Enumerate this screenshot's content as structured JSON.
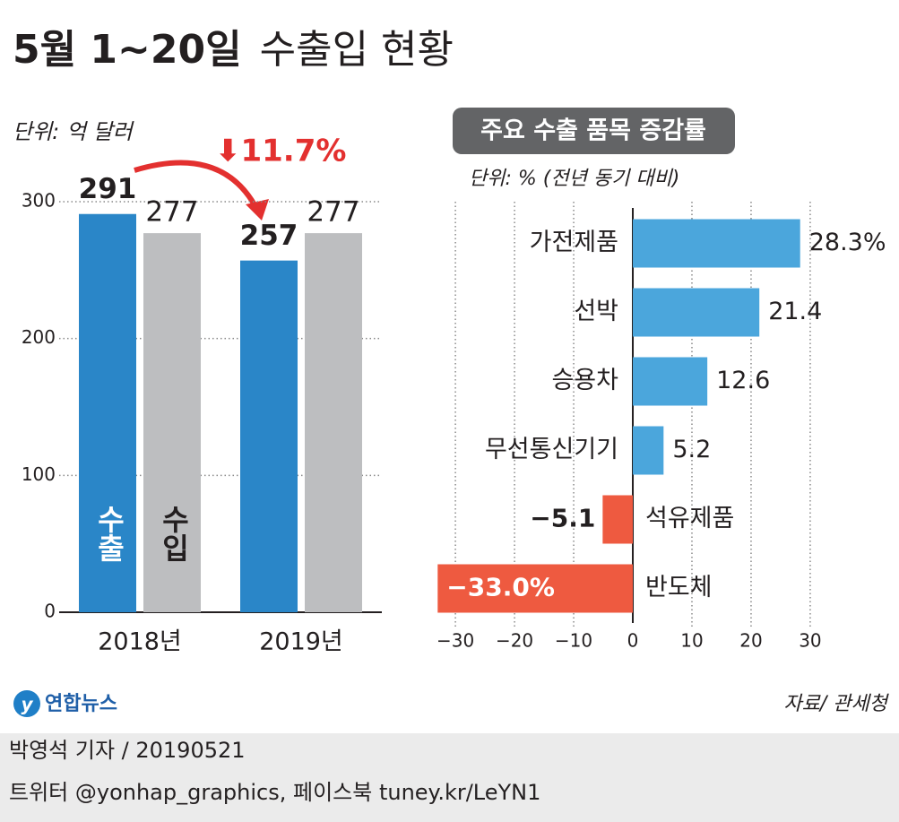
{
  "title_main": "5월 1~20일",
  "title_rest": "수출입 현황",
  "chart_data": [
    {
      "type": "bar",
      "unit": "단위: 억 달러",
      "annotation": "⬇11.7%",
      "annotation_color": "#e3302f",
      "categories": [
        "2018년",
        "2019년"
      ],
      "series": [
        {
          "name": "수출",
          "color": "#2a86c8",
          "values": [
            291,
            257
          ]
        },
        {
          "name": "수입",
          "color": "#bdbec0",
          "values": [
            277,
            277
          ]
        }
      ],
      "ylim": [
        0,
        300
      ],
      "yticks": [
        0,
        100,
        200,
        300
      ],
      "grid": true
    },
    {
      "type": "barh",
      "title": "주요 수출 품목 증감률",
      "unit": "단위: % (전년 동기 대비)",
      "categories": [
        "가전제품",
        "선박",
        "승용차",
        "무선통신기기",
        "석유제품",
        "반도체"
      ],
      "values": [
        28.3,
        21.4,
        12.6,
        5.2,
        -5.1,
        -33.0
      ],
      "value_labels": [
        "28.3%",
        "21.4",
        "12.6",
        "5.2",
        "−5.1",
        "−33.0%"
      ],
      "color": "#4ba6dc",
      "negative_color": "#ee5a40",
      "xlim": [
        -33.5,
        43.5
      ],
      "xticks": [
        {
          "value": -30,
          "label": "−30"
        },
        {
          "value": -20,
          "label": "−20"
        },
        {
          "value": -10,
          "label": "−10"
        },
        0,
        10,
        20,
        30
      ],
      "grid": true
    }
  ],
  "logo": "연합뉴스",
  "source": "자료/ 관세청",
  "byline": "박영석 기자 / 20190521",
  "footer": "트위터 @yonhap_graphics, 페이스북 tuney.kr/LeYN1"
}
